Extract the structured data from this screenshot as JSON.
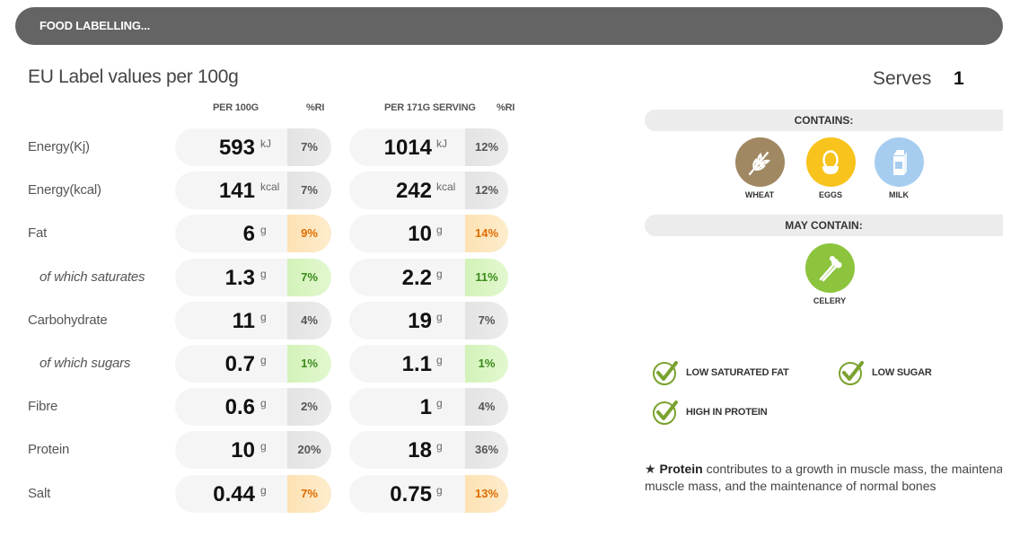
{
  "header": {
    "title": "FOOD LABELLING..."
  },
  "left": {
    "title": "EU Label values per 100g",
    "col_per100": "PER 100G",
    "col_ri1": "%RI",
    "col_serving": "PER 171G SERVING",
    "col_ri2": "%RI"
  },
  "serves": {
    "label": "Serves",
    "value": "1"
  },
  "rows": [
    {
      "label": "Energy(Kj)",
      "v100": "593",
      "u100": "kJ",
      "ri100": "7%",
      "vs": "1014",
      "us": "kJ",
      "ris": "12%"
    },
    {
      "label": "Energy(kcal)",
      "v100": "141",
      "u100": "kcal",
      "ri100": "7%",
      "vs": "242",
      "us": "kcal",
      "ris": "12%"
    },
    {
      "label": "Fat",
      "v100": "6",
      "u100": "g",
      "ri100": "9%",
      "vs": "10",
      "us": "g",
      "ris": "14%"
    },
    {
      "label": "of which saturates",
      "v100": "1.3",
      "u100": "g",
      "ri100": "7%",
      "vs": "2.2",
      "us": "g",
      "ris": "11%"
    },
    {
      "label": "Carbohydrate",
      "v100": "11",
      "u100": "g",
      "ri100": "4%",
      "vs": "19",
      "us": "g",
      "ris": "7%"
    },
    {
      "label": "of which sugars",
      "v100": "0.7",
      "u100": "g",
      "ri100": "1%",
      "vs": "1.1",
      "us": "g",
      "ris": "1%"
    },
    {
      "label": "Fibre",
      "v100": "0.6",
      "u100": "g",
      "ri100": "2%",
      "vs": "1",
      "us": "g",
      "ris": "4%"
    },
    {
      "label": "Protein",
      "v100": "10",
      "u100": "g",
      "ri100": "20%",
      "vs": "18",
      "us": "g",
      "ris": "36%"
    },
    {
      "label": "Salt",
      "v100": "0.44",
      "u100": "g",
      "ri100": "7%",
      "vs": "0.75",
      "us": "g",
      "ris": "13%"
    }
  ],
  "contains": {
    "title": "CONTAINS:",
    "items": [
      {
        "name": "WHEAT",
        "icon": "wheat-icon",
        "color": "#a08863"
      },
      {
        "name": "EGGS",
        "icon": "egg-icon",
        "color": "#f7c31c"
      },
      {
        "name": "MILK",
        "icon": "milk-icon",
        "color": "#a6cdef"
      }
    ]
  },
  "may_contain": {
    "title": "MAY CONTAIN:",
    "items": [
      {
        "name": "CELERY",
        "icon": "celery-icon",
        "color": "#8cc43d"
      }
    ]
  },
  "claims": [
    {
      "text": "LOW SATURATED FAT",
      "icon": "check-icon"
    },
    {
      "text": "LOW SUGAR",
      "icon": "check-icon"
    },
    {
      "text": "HIGH IN PROTEIN",
      "icon": "check-icon"
    }
  ],
  "footnote": {
    "star": "★",
    "bold": "Protein",
    "line1": " contributes to a growth in muscle mass, the maintenance of",
    "line2": "muscle mass, and the maintenance of normal bones"
  },
  "colors": {
    "check": "#7aa22e",
    "ri_low": "#3a8a1a",
    "ri_med": "#e06c00"
  }
}
